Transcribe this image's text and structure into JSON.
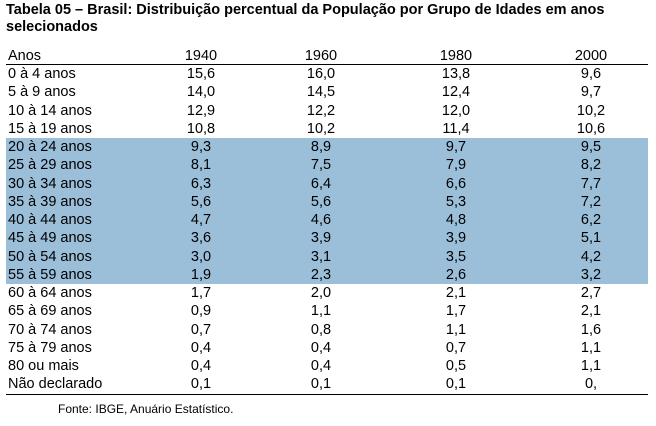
{
  "title": "Tabela 05 – Brasil: Distribuição percentual da População por Grupo de Idades em anos selecionados",
  "table": {
    "columns": [
      "Anos",
      "1940",
      "1960",
      "1980",
      "2000"
    ],
    "rows": [
      {
        "cells": [
          "0 à 4 anos",
          "15,6",
          "16,0",
          "13,8",
          "9,6"
        ],
        "highlight": false
      },
      {
        "cells": [
          "5 à 9 anos",
          "14,0",
          "14,5",
          "12,4",
          "9,7"
        ],
        "highlight": false
      },
      {
        "cells": [
          "10 à 14 anos",
          "12,9",
          "12,2",
          "12,0",
          "10,2"
        ],
        "highlight": false
      },
      {
        "cells": [
          "15 à 19 anos",
          "10,8",
          "10,2",
          "11,4",
          "10,6"
        ],
        "highlight": false
      },
      {
        "cells": [
          "20 à 24 anos",
          "9,3",
          "8,9",
          "9,7",
          "9,5"
        ],
        "highlight": true
      },
      {
        "cells": [
          "25 à 29 anos",
          "8,1",
          "7,5",
          "7,9",
          "8,2"
        ],
        "highlight": true
      },
      {
        "cells": [
          "30 à 34 anos",
          "6,3",
          "6,4",
          "6,6",
          "7,7"
        ],
        "highlight": true
      },
      {
        "cells": [
          "35 à 39 anos",
          "5,6",
          "5,6",
          "5,3",
          "7,2"
        ],
        "highlight": true
      },
      {
        "cells": [
          "40 à 44 anos",
          "4,7",
          "4,6",
          "4,8",
          "6,2"
        ],
        "highlight": true
      },
      {
        "cells": [
          "45 à 49 anos",
          "3,6",
          "3,9",
          "3,9",
          "5,1"
        ],
        "highlight": true
      },
      {
        "cells": [
          "50 à 54 anos",
          "3,0",
          "3,1",
          "3,5",
          "4,2"
        ],
        "highlight": true
      },
      {
        "cells": [
          "55 à 59 anos",
          "1,9",
          "2,3",
          "2,6",
          "3,2"
        ],
        "highlight": true
      },
      {
        "cells": [
          "60 à 64 anos",
          "1,7",
          "2,0",
          "2,1",
          "2,7"
        ],
        "highlight": false
      },
      {
        "cells": [
          "65 à 69 anos",
          "0,9",
          "1,1",
          "1,7",
          "2,1"
        ],
        "highlight": false
      },
      {
        "cells": [
          "70 à 74 anos",
          "0,7",
          "0,8",
          "1,1",
          "1,6"
        ],
        "highlight": false
      },
      {
        "cells": [
          "75 à 79 anos",
          "0,4",
          "0,4",
          "0,7",
          "1,1"
        ],
        "highlight": false
      },
      {
        "cells": [
          "80 ou mais",
          "0,4",
          "0,4",
          "0,5",
          "1,1"
        ],
        "highlight": false
      },
      {
        "cells": [
          "Não declarado",
          "0,1",
          "0,1",
          "0,1",
          "0,"
        ],
        "highlight": false
      }
    ],
    "highlight_color": "#9bbfd9"
  },
  "source": "Fonte: IBGE, Anuário Estatístico."
}
